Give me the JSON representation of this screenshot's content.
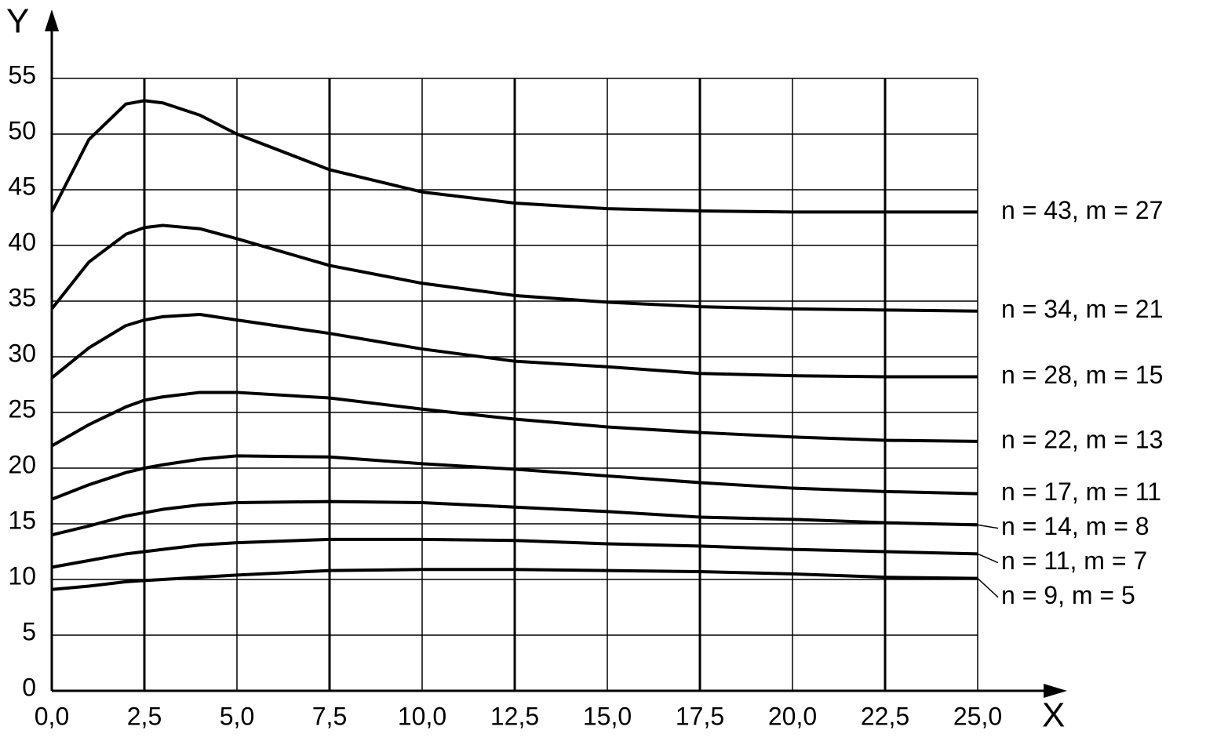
{
  "chart_data": {
    "type": "line",
    "xlabel": "X",
    "ylabel": "Y",
    "x": [
      0,
      1,
      2,
      2.5,
      3,
      4,
      5,
      7.5,
      10,
      12.5,
      15,
      17.5,
      20,
      22.5,
      25
    ],
    "series": [
      {
        "name": "n = 43, m = 27",
        "color": "#000000",
        "values": [
          43,
          49.5,
          52.7,
          53,
          52.8,
          51.7,
          50,
          46.8,
          44.8,
          43.8,
          43.3,
          43.1,
          43,
          43,
          43
        ]
      },
      {
        "name": "n = 34, m = 21",
        "color": "#000000",
        "values": [
          34.3,
          38.5,
          41,
          41.6,
          41.8,
          41.5,
          40.6,
          38.2,
          36.6,
          35.5,
          34.9,
          34.5,
          34.3,
          34.2,
          34.1
        ]
      },
      {
        "name": "n = 28, m = 15",
        "color": "#000000",
        "values": [
          28.1,
          30.8,
          32.8,
          33.3,
          33.6,
          33.8,
          33.3,
          32.1,
          30.7,
          29.6,
          29.1,
          28.5,
          28.3,
          28.2,
          28.2
        ]
      },
      {
        "name": "n = 22, m = 13",
        "color": "#000000",
        "values": [
          22,
          23.9,
          25.5,
          26.1,
          26.4,
          26.8,
          26.8,
          26.3,
          25.3,
          24.4,
          23.7,
          23.2,
          22.8,
          22.5,
          22.4
        ]
      },
      {
        "name": "n = 17, m = 11",
        "color": "#000000",
        "values": [
          17.2,
          18.5,
          19.6,
          20,
          20.3,
          20.8,
          21.1,
          21,
          20.4,
          19.9,
          19.3,
          18.7,
          18.2,
          17.9,
          17.7
        ]
      },
      {
        "name": "n = 14, m = 8",
        "color": "#000000",
        "values": [
          14,
          14.8,
          15.7,
          16,
          16.3,
          16.7,
          16.9,
          17,
          16.9,
          16.5,
          16.1,
          15.6,
          15.4,
          15.1,
          14.9
        ]
      },
      {
        "name": "n = 11, m = 7",
        "color": "#000000",
        "values": [
          11.1,
          11.7,
          12.3,
          12.5,
          12.7,
          13.1,
          13.3,
          13.6,
          13.6,
          13.5,
          13.2,
          13,
          12.7,
          12.5,
          12.3
        ]
      },
      {
        "name": "n = 9, m = 5",
        "color": "#000000",
        "values": [
          9.1,
          9.4,
          9.8,
          9.9,
          10,
          10.2,
          10.4,
          10.8,
          10.9,
          10.9,
          10.8,
          10.7,
          10.5,
          10.2,
          10.1
        ]
      }
    ],
    "xlim": [
      0,
      25
    ],
    "ylim": [
      0,
      55
    ],
    "xticks": [
      {
        "value": 0,
        "label": "0,0"
      },
      {
        "value": 2.5,
        "label": "2,5"
      },
      {
        "value": 5,
        "label": "5,0"
      },
      {
        "value": 7.5,
        "label": "7,5"
      },
      {
        "value": 10,
        "label": "10,0"
      },
      {
        "value": 12.5,
        "label": "12,5"
      },
      {
        "value": 15,
        "label": "15,0"
      },
      {
        "value": 17.5,
        "label": "17,5"
      },
      {
        "value": 20,
        "label": "20,0"
      },
      {
        "value": 22.5,
        "label": "22,5"
      },
      {
        "value": 25,
        "label": "25,0"
      }
    ],
    "yticks": [
      0,
      5,
      10,
      15,
      20,
      25,
      30,
      35,
      40,
      45,
      50,
      55
    ],
    "grid": true
  }
}
